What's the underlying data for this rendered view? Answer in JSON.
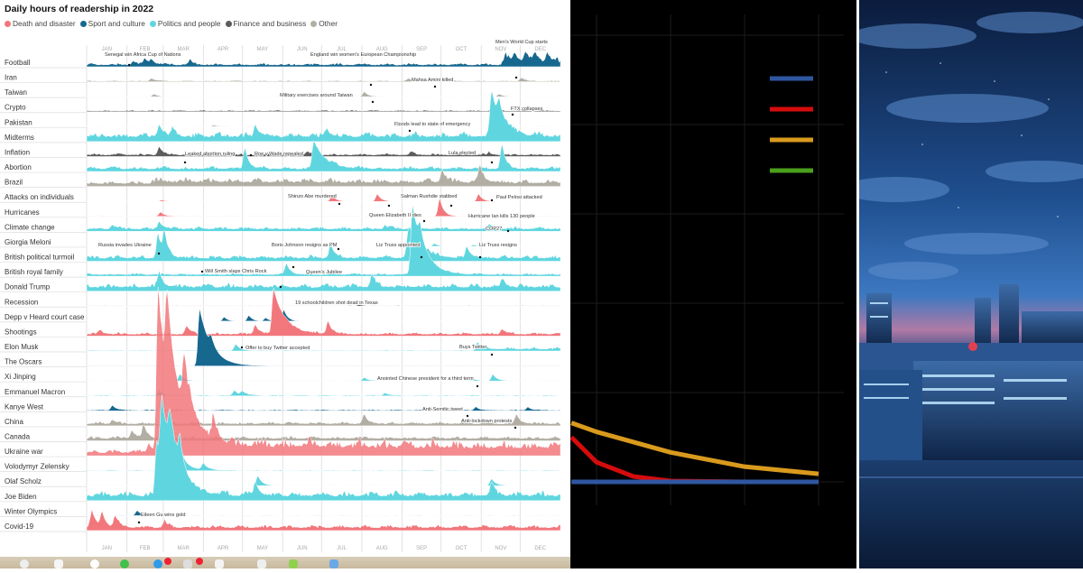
{
  "chart_data": [
    {
      "type": "area",
      "title": "Daily hours of readership in 2022",
      "legend": [
        {
          "key": "death",
          "label": "Death and disaster",
          "color": "#f2777c"
        },
        {
          "key": "sport",
          "label": "Sport and culture",
          "color": "#17688f"
        },
        {
          "key": "politics",
          "label": "Politics and people",
          "color": "#5fd6df"
        },
        {
          "key": "finance",
          "label": "Finance and business",
          "color": "#5c5c5c"
        },
        {
          "key": "other",
          "label": "Other",
          "color": "#b2aea4"
        }
      ],
      "months": [
        "JAN",
        "FEB",
        "MAR",
        "APR",
        "MAY",
        "JUN",
        "JUL",
        "AUG",
        "SEP",
        "OCT",
        "NOV",
        "DEC"
      ],
      "xlabel": "",
      "ylabel": "",
      "series": [
        {
          "name": "Football",
          "category": "sport",
          "base": 0.35,
          "peaks": [
            [
              36,
              0.5
            ],
            [
              45,
              0.7
            ],
            [
              50,
              0.6
            ],
            [
              80,
              0.5
            ],
            [
              323,
              0.8
            ],
            [
              330,
              1.1
            ],
            [
              338,
              1.2
            ],
            [
              346,
              1.1
            ],
            [
              355,
              1.2
            ]
          ],
          "after": [
            320,
            0.8
          ]
        },
        {
          "name": "Iran",
          "category": "other",
          "base": 0.12,
          "peaks": [
            [
              50,
              0.35
            ],
            [
              248,
              0.3
            ],
            [
              258,
              0.3
            ],
            [
              335,
              0.4
            ]
          ]
        },
        {
          "name": "Taiwan",
          "category": "other",
          "base": 0.03,
          "peaks": [
            [
              52,
              0.3
            ],
            [
              214,
              0.6
            ],
            [
              318,
              0.3
            ]
          ]
        },
        {
          "name": "Crypto",
          "category": "finance",
          "base": 0.15,
          "peaks": [
            [
              313,
              0.45
            ]
          ]
        },
        {
          "name": "Pakistan",
          "category": "other",
          "base": 0.04,
          "peaks": [
            [
              240,
              0.12
            ],
            [
              98,
              0.15
            ]
          ]
        },
        {
          "name": "Midterms",
          "category": "politics",
          "base": 0.9,
          "peaks": [
            [
              56,
              1.5
            ],
            [
              66,
              1.0
            ],
            [
              130,
              1.5
            ],
            [
              185,
              1.0
            ],
            [
              312,
              5.2
            ],
            [
              318,
              2.0
            ]
          ]
        },
        {
          "name": "Inflation",
          "category": "finance",
          "base": 0.3,
          "peaks": [
            [
              56,
              1.0
            ],
            [
              170,
              0.4
            ],
            [
              250,
              0.4
            ],
            [
              310,
              0.3
            ]
          ]
        },
        {
          "name": "Abortion",
          "category": "politics",
          "base": 0.5,
          "peaks": [
            [
              122,
              2.6
            ],
            [
              175,
              3.4
            ],
            [
              320,
              3.0
            ]
          ]
        },
        {
          "name": "Brazil",
          "category": "other",
          "base": 0.55,
          "peaks": [
            [
              274,
              1.7
            ],
            [
              303,
              2.3
            ]
          ],
          "after": [
            50,
            0.9
          ]
        },
        {
          "name": "Attacks on individuals",
          "category": "death",
          "base": 0.02,
          "peaks": [
            [
              189,
              0.8
            ],
            [
              224,
              0.9
            ],
            [
              302,
              0.9
            ],
            [
              58,
              0.15
            ]
          ]
        },
        {
          "name": "Hurricanes",
          "category": "death",
          "base": 0.06,
          "peaks": [
            [
              57,
              0.5
            ],
            [
              272,
              2.2
            ]
          ]
        },
        {
          "name": "Climate change",
          "category": "politics",
          "base": 0.45,
          "peaks": [
            [
              20,
              0.5
            ],
            [
              56,
              0.9
            ],
            [
              230,
              0.4
            ],
            [
              310,
              0.4
            ]
          ]
        },
        {
          "name": "Giorgia Meloni",
          "category": "politics",
          "base": 0.0,
          "peaks": [
            [
              268,
              0.35
            ],
            [
              298,
              0.2
            ]
          ]
        },
        {
          "name": "British political turmoil",
          "category": "politics",
          "base": 0.6,
          "peaks": [
            [
              55,
              3.0
            ],
            [
              60,
              2.8
            ],
            [
              188,
              1.7
            ],
            [
              248,
              3.8
            ],
            [
              256,
              2.0
            ],
            [
              293,
              1.4
            ]
          ]
        },
        {
          "name": "British royal family",
          "category": "politics",
          "base": 0.3,
          "peaks": [
            [
              154,
              1.4
            ],
            [
              251,
              8.5
            ],
            [
              257,
              2.0
            ]
          ]
        },
        {
          "name": "Donald Trump",
          "category": "politics",
          "base": 0.75,
          "peaks": [
            [
              56,
              1.6
            ],
            [
              220,
              1.6
            ],
            [
              320,
              1.0
            ]
          ]
        },
        {
          "name": "Recession",
          "category": "finance",
          "base": 0.06,
          "peaks": [
            [
              210,
              0.15
            ]
          ]
        },
        {
          "name": "Depp v Heard court case",
          "category": "sport",
          "base": 0.0,
          "peaks": [
            [
              106,
              0.5
            ],
            [
              125,
              0.7
            ],
            [
              138,
              0.4
            ],
            [
              152,
              1.4
            ]
          ],
          "active": [
            100,
            200
          ]
        },
        {
          "name": "Shootings",
          "category": "death",
          "base": 0.35,
          "peaks": [
            [
              10,
              0.5
            ],
            [
              77,
              1.0
            ],
            [
              130,
              1.2
            ],
            [
              144,
              5.5
            ],
            [
              186,
              1.6
            ],
            [
              320,
              0.6
            ]
          ]
        },
        {
          "name": "Elon Musk",
          "category": "politics",
          "base": 0.08,
          "peaks": [
            [
              95,
              0.4
            ],
            [
              115,
              0.8
            ],
            [
              301,
              0.7
            ]
          ],
          "after": [
            300,
            0.4
          ]
        },
        {
          "name": "The Oscars",
          "category": "sport",
          "base": 0.03,
          "peaks": [
            [
              87,
              7.0
            ],
            [
              96,
              1.2
            ]
          ]
        },
        {
          "name": "Xi Jinping",
          "category": "politics",
          "base": 0.04,
          "peaks": [
            [
              72,
              0.8
            ],
            [
              214,
              0.4
            ],
            [
              296,
              0.4
            ],
            [
              313,
              0.8
            ]
          ]
        },
        {
          "name": "Emmanuel Macron",
          "category": "politics",
          "base": 0.1,
          "peaks": [
            [
              56,
              0.6
            ],
            [
              114,
              0.6
            ],
            [
              120,
              0.5
            ],
            [
              230,
              0.3
            ]
          ]
        },
        {
          "name": "Kanye West",
          "category": "sport",
          "base": 0.12,
          "peaks": [
            [
              20,
              0.6
            ],
            [
              300,
              0.4
            ],
            [
              340,
              0.4
            ]
          ]
        },
        {
          "name": "China",
          "category": "other",
          "base": 0.4,
          "peaks": [
            [
              20,
              0.5
            ],
            [
              214,
              1.0
            ],
            [
              331,
              1.1
            ]
          ]
        },
        {
          "name": "Canada",
          "category": "other",
          "base": 0.45,
          "peaks": [
            [
              35,
              1.0
            ],
            [
              44,
              1.5
            ]
          ]
        },
        {
          "name": "Ukraine war",
          "category": "death",
          "base": 0.6,
          "peaks": [
            [
              48,
              1.2
            ],
            [
              55,
              19
            ],
            [
              62,
              10
            ],
            [
              75,
              6
            ],
            [
              98,
              3
            ]
          ],
          "after": [
            54,
            1.9
          ]
        },
        {
          "name": "Volodymyr Zelensky",
          "category": "politics",
          "base": 0.08,
          "peaks": [
            [
              58,
              4.2
            ],
            [
              64,
              2.5
            ],
            [
              72,
              2.2
            ],
            [
              90,
              0.8
            ]
          ]
        },
        {
          "name": "Olaf Scholz",
          "category": "politics",
          "base": 0.05,
          "peaks": [
            [
              57,
              2.0
            ],
            [
              62,
              1.5
            ],
            [
              132,
              1.2
            ],
            [
              312,
              0.8
            ]
          ]
        },
        {
          "name": "Joe Biden",
          "category": "politics",
          "base": 0.9,
          "peaks": [
            [
              54,
              6.5
            ],
            [
              58,
              8.0
            ],
            [
              64,
              4.0
            ],
            [
              72,
              3.0
            ],
            [
              130,
              1.6
            ],
            [
              312,
              1.6
            ]
          ]
        },
        {
          "name": "Winter Olympics",
          "category": "sport",
          "base": 0.04,
          "peaks": [
            [
              39,
              0.6
            ],
            [
              45,
              0.4
            ]
          ]
        },
        {
          "name": "Covid-19",
          "category": "death",
          "base": 0.55,
          "peaks": [
            [
              4,
              2.0
            ],
            [
              12,
              1.8
            ],
            [
              22,
              1.2
            ],
            [
              60,
              0.8
            ]
          ]
        }
      ],
      "annotations": [
        {
          "text": "Senegal win Africa Cup of Nations",
          "series": "Football",
          "day": 36
        },
        {
          "text": "England win women's European Championship",
          "series": "Football",
          "day": 211
        },
        {
          "text": "Men's World Cup starts",
          "series": "Football",
          "day": 323
        },
        {
          "text": "Mahsa Amini killed",
          "series": "Iran",
          "day": 258
        },
        {
          "text": "Military exercises around Taiwan",
          "series": "Taiwan",
          "day": 214
        },
        {
          "text": "FTX collapses",
          "series": "Crypto",
          "day": 313
        },
        {
          "text": "Floods lead to state of emergency",
          "series": "Pakistan",
          "day": 240
        },
        {
          "text": "Leaked abortion ruling",
          "series": "Abortion",
          "day": 122
        },
        {
          "text": "Roe v Wade repealed",
          "series": "Abortion",
          "day": 175
        },
        {
          "text": "Lula elected",
          "series": "Brazil",
          "day": 303
        },
        {
          "text": "Shinzo Abe murdered",
          "series": "Attacks on individuals",
          "day": 189
        },
        {
          "text": "Salman Rushdie stabbed",
          "series": "Attacks on individuals",
          "day": 224
        },
        {
          "text": "Paul Pelosi attacked",
          "series": "Attacks on individuals",
          "day": 302
        },
        {
          "text": "Queen Elizabeth II dies",
          "series": "British royal family",
          "day": 251
        },
        {
          "text": "Hurricane Ian kills 130 people",
          "series": "Hurricanes",
          "day": 272
        },
        {
          "text": "COP27",
          "series": "Climate change",
          "day": 310
        },
        {
          "text": "Russia invades Ukraine",
          "series": "Ukraine war",
          "day": 55
        },
        {
          "text": "Boris Johnson resigns as PM",
          "series": "British political turmoil",
          "day": 188
        },
        {
          "text": "Liz Truss appointed",
          "series": "British political turmoil",
          "day": 248
        },
        {
          "text": "Liz Truss resigns",
          "series": "British political turmoil",
          "day": 293
        },
        {
          "text": "Will Smith slaps Chris Rock",
          "series": "The Oscars",
          "day": 87
        },
        {
          "text": "Queen's Jubilee",
          "series": "British royal family",
          "day": 154
        },
        {
          "text": "19 schoolchildren shot dead in Texas",
          "series": "Shootings",
          "day": 144
        },
        {
          "text": "Offer to buy Twitter accepted",
          "series": "Elon Musk",
          "day": 115
        },
        {
          "text": "Buys Twitter",
          "series": "Elon Musk",
          "day": 301
        },
        {
          "text": "Anointed Chinese president for a third term",
          "series": "Xi Jinping",
          "day": 296
        },
        {
          "text": "Anti-Semitic tweet",
          "series": "Kanye West",
          "day": 282
        },
        {
          "text": "Anti-lockdown protests",
          "series": "China",
          "day": 331
        },
        {
          "text": "Eileen Gu wins gold",
          "series": "Winter Olympics",
          "day": 39
        }
      ]
    },
    {
      "type": "line",
      "title": "",
      "xlabel": "",
      "ylabel": "",
      "xlim": [
        0.66,
        4.3
      ],
      "ylim": [
        -0.3,
        5.2
      ],
      "grid": true,
      "legend_placement": "top-right",
      "series": [
        {
          "color": "#2f56a0",
          "x": [
            0.66,
            1,
            2,
            3,
            4
          ],
          "y": [
            0,
            0,
            0,
            0,
            0
          ]
        },
        {
          "color": "#d50c0c",
          "x": [
            0.66,
            1,
            1.5,
            2,
            3,
            4
          ],
          "y": [
            0.5,
            0.22,
            0.06,
            0.01,
            0,
            0
          ]
        },
        {
          "color": "#d99a1d",
          "x": [
            0.66,
            1,
            2,
            3,
            4
          ],
          "y": [
            0.66,
            0.56,
            0.33,
            0.17,
            0.09
          ]
        },
        {
          "color": "#4aa01c",
          "x": [],
          "y": []
        }
      ]
    }
  ]
}
